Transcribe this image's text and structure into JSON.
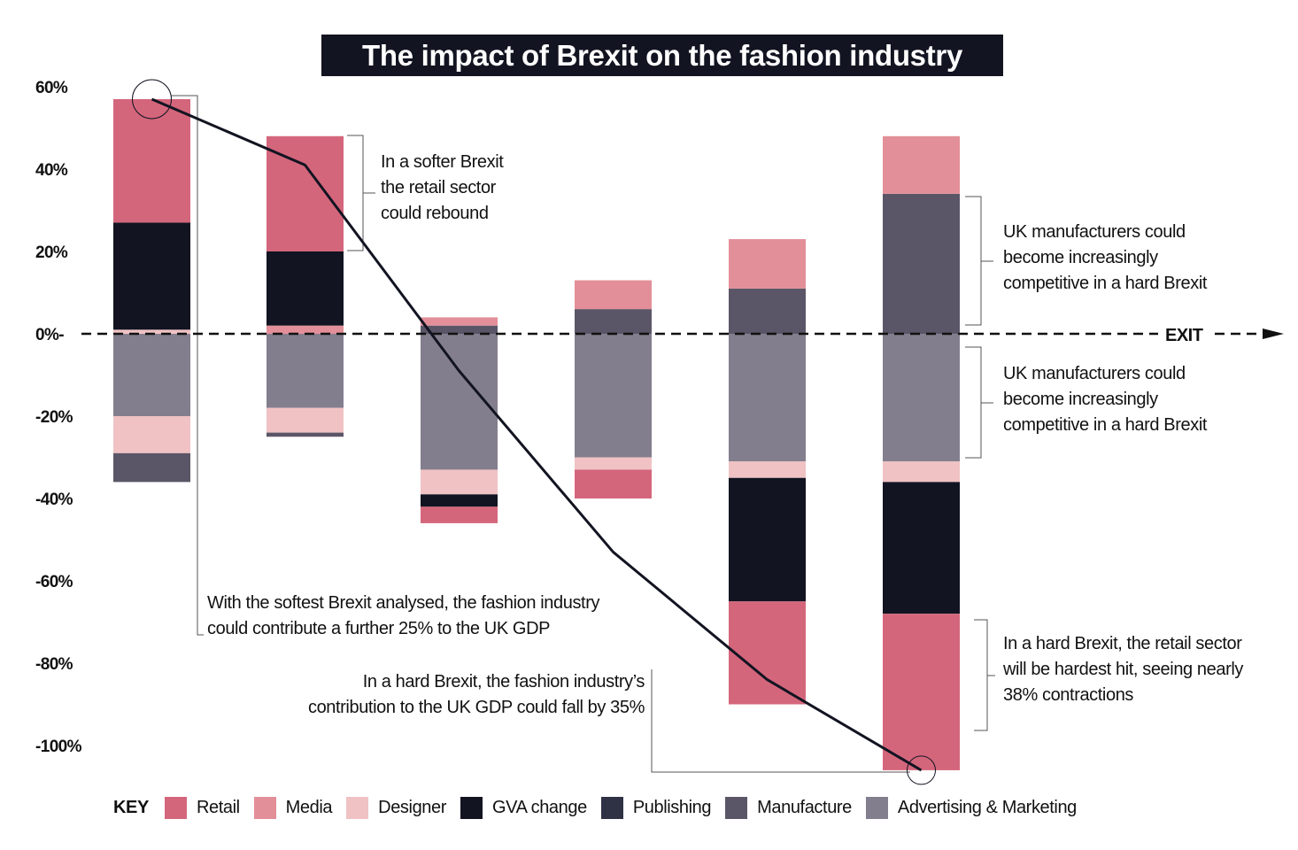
{
  "chart_data": {
    "type": "bar",
    "stacked": true,
    "title": "The impact of Brexit on the fashion industry",
    "xlabel": "",
    "ylabel": "",
    "ylim": [
      -105,
      65
    ],
    "yticks": [
      {
        "value": 60,
        "label": "60%"
      },
      {
        "value": 40,
        "label": "40%"
      },
      {
        "value": 20,
        "label": "20%"
      },
      {
        "value": 0,
        "label": "0%-"
      },
      {
        "value": -20,
        "label": "-20%"
      },
      {
        "value": -40,
        "label": "-40%"
      },
      {
        "value": -60,
        "label": "-60%"
      },
      {
        "value": -80,
        "label": "-80%"
      },
      {
        "value": -100,
        "label": "-100%"
      }
    ],
    "categories": [
      "",
      "",
      "",
      "",
      "",
      ""
    ],
    "segments": [
      [
        {
          "series": "Designer",
          "from": 0,
          "to": 1
        },
        {
          "series": "GVA change",
          "from": 1,
          "to": 27
        },
        {
          "series": "Retail",
          "from": 27,
          "to": 57
        },
        {
          "series": "Advertising & Marketing",
          "from": 0,
          "to": -20
        },
        {
          "series": "Designer",
          "from": -20,
          "to": -29
        },
        {
          "series": "Manufacture",
          "from": -29,
          "to": -36
        }
      ],
      [
        {
          "series": "Media",
          "from": 0,
          "to": 2
        },
        {
          "series": "GVA change",
          "from": 2,
          "to": 20
        },
        {
          "series": "Retail",
          "from": 20,
          "to": 48
        },
        {
          "series": "Advertising & Marketing",
          "from": 0,
          "to": -18
        },
        {
          "series": "Designer",
          "from": -18,
          "to": -24
        },
        {
          "series": "Manufacture",
          "from": -24,
          "to": -25
        }
      ],
      [
        {
          "series": "Manufacture",
          "from": 0,
          "to": 2
        },
        {
          "series": "Media",
          "from": 2,
          "to": 4
        },
        {
          "series": "Advertising & Marketing",
          "from": 0,
          "to": -33
        },
        {
          "series": "Designer",
          "from": -33,
          "to": -39
        },
        {
          "series": "GVA change",
          "from": -39,
          "to": -42
        },
        {
          "series": "Retail",
          "from": -42,
          "to": -46
        }
      ],
      [
        {
          "series": "Manufacture",
          "from": 0,
          "to": 6
        },
        {
          "series": "Media",
          "from": 6,
          "to": 13
        },
        {
          "series": "Advertising & Marketing",
          "from": 0,
          "to": -30
        },
        {
          "series": "Designer",
          "from": -30,
          "to": -33
        },
        {
          "series": "Retail",
          "from": -33,
          "to": -40
        }
      ],
      [
        {
          "series": "Manufacture",
          "from": 0,
          "to": 11
        },
        {
          "series": "Media",
          "from": 11,
          "to": 23
        },
        {
          "series": "Advertising & Marketing",
          "from": 0,
          "to": -31
        },
        {
          "series": "Designer",
          "from": -31,
          "to": -35
        },
        {
          "series": "GVA change",
          "from": -35,
          "to": -65
        },
        {
          "series": "Retail",
          "from": -65,
          "to": -90
        }
      ],
      [
        {
          "series": "Manufacture",
          "from": 0,
          "to": 34
        },
        {
          "series": "Media",
          "from": 34,
          "to": 48
        },
        {
          "series": "Advertising & Marketing",
          "from": 0,
          "to": -31
        },
        {
          "series": "Designer",
          "from": -31,
          "to": -36
        },
        {
          "series": "GVA change",
          "from": -36,
          "to": -68
        },
        {
          "series": "Retail",
          "from": -68,
          "to": -106
        }
      ]
    ],
    "line": {
      "points": [
        {
          "x": 0,
          "y": 57
        },
        {
          "x": 1,
          "y": 41
        },
        {
          "x": 2,
          "y": -9
        },
        {
          "x": 3,
          "y": -53
        },
        {
          "x": 4,
          "y": -84
        },
        {
          "x": 5,
          "y": -106
        }
      ]
    },
    "exit_label": "EXIT",
    "legend": {
      "position": "bottom",
      "key_label": "KEY",
      "items": [
        {
          "name": "Retail",
          "color": "#d4667c"
        },
        {
          "name": "Media",
          "color": "#e38f99"
        },
        {
          "name": "Designer",
          "color": "#f0c2c4"
        },
        {
          "name": "GVA change",
          "color": "#121421"
        },
        {
          "name": "Publishing",
          "color": "#2f3145"
        },
        {
          "name": "Manufacture",
          "color": "#5b5667"
        },
        {
          "name": "Advertising & Marketing",
          "color": "#837e8e"
        }
      ]
    },
    "annotations": [
      {
        "id": "softer",
        "lines": [
          "In a softer Brexit",
          "the retail sector",
          "could rebound"
        ]
      },
      {
        "id": "manuf-top",
        "lines": [
          "UK manufacturers could",
          "become increasingly",
          "competitive in a hard Brexit"
        ]
      },
      {
        "id": "manuf-bottom",
        "lines": [
          "UK manufacturers could",
          "become increasingly",
          "competitive in a hard Brexit"
        ]
      },
      {
        "id": "softest",
        "lines": [
          "With the softest Brexit analysed, the fashion industry",
          "could contribute a further 25% to the UK GDP"
        ]
      },
      {
        "id": "hard-gdp",
        "lines": [
          "In a hard Brexit, the fashion industry’s",
          "contribution to the UK GDP could fall by 35%"
        ]
      },
      {
        "id": "hard-retail",
        "lines": [
          "In a hard Brexit, the retail sector",
          "will be hardest hit, seeing nearly",
          "38% contractions"
        ]
      }
    ]
  }
}
